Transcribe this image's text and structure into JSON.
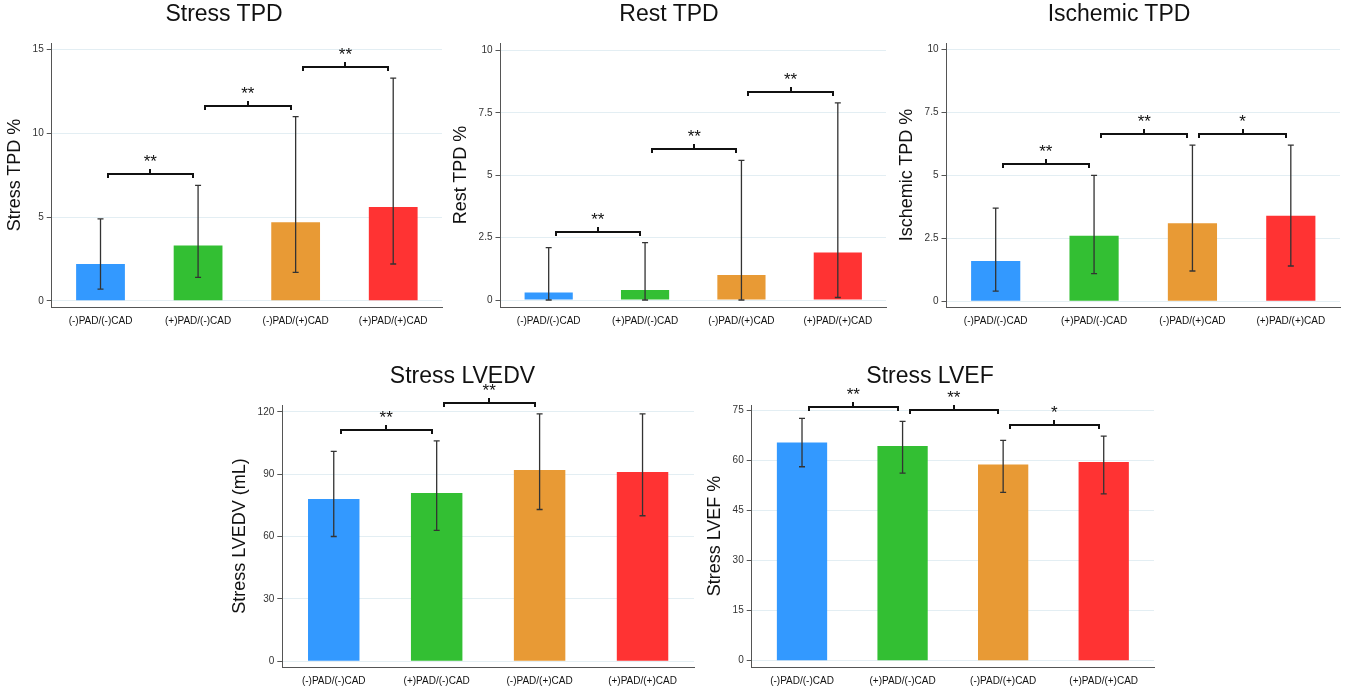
{
  "chart_data": [
    {
      "type": "bar",
      "title": "Stress TPD",
      "ylabel": "Stress TPD %",
      "categories": [
        "(-)PAD/(-)CAD",
        "(+)PAD/(-)CAD",
        "(-)PAD/(+)CAD",
        "(+)PAD/(+)CAD"
      ],
      "values": [
        2.2,
        3.3,
        4.7,
        5.6
      ],
      "colors": [
        "#3399ff",
        "#33bf33",
        "#e89a35",
        "#ff3333"
      ],
      "errors": [
        [
          0.7,
          4.9
        ],
        [
          1.4,
          6.9
        ],
        [
          1.7,
          11
        ],
        [
          2.2,
          13.3
        ]
      ],
      "ylim": [
        -0.37,
        15.4
      ],
      "yticks": [
        0,
        5,
        10,
        15
      ],
      "grid": "y",
      "annotations": [
        "**",
        "**",
        "**"
      ]
    },
    {
      "type": "bar",
      "title": "Rest TPD",
      "ylabel": "Rest TPD %",
      "categories": [
        "(-)PAD/(-)CAD",
        "(+)PAD/(-)CAD",
        "(-)PAD/(+)CAD",
        "(+)PAD/(+)CAD"
      ],
      "values": [
        0.3,
        0.4,
        1.0,
        1.9
      ],
      "colors": [
        "#3399ff",
        "#33bf33",
        "#e89a35",
        "#ff3333"
      ],
      "errors": [
        [
          0,
          2.1
        ],
        [
          0,
          2.3
        ],
        [
          0,
          5.6
        ],
        [
          0.1,
          7.9
        ]
      ],
      "ylim": [
        -0.28,
        10.3
      ],
      "yticks": [
        0,
        2.5,
        5,
        7.5,
        10
      ],
      "grid": "y",
      "annotations": [
        "**",
        "**",
        "**"
      ]
    },
    {
      "type": "bar",
      "title": "Ischemic TPD",
      "ylabel": "Ischemic TPD %",
      "categories": [
        "(-)PAD/(-)CAD",
        "(+)PAD/(-)CAD",
        "(-)PAD/(+)CAD",
        "(+)PAD/(+)CAD"
      ],
      "values": [
        1.6,
        2.6,
        3.1,
        3.4
      ],
      "colors": [
        "#3399ff",
        "#33bf33",
        "#e89a35",
        "#ff3333"
      ],
      "errors": [
        [
          0.4,
          3.7
        ],
        [
          1.1,
          5.0
        ],
        [
          1.2,
          6.2
        ],
        [
          1.4,
          6.2
        ]
      ],
      "ylim": [
        -0.23,
        10.26
      ],
      "yticks": [
        0,
        2.5,
        5,
        7.5,
        10
      ],
      "grid": "y",
      "annotations": [
        "**",
        "**",
        "*"
      ]
    },
    {
      "type": "bar",
      "title": "Stress LVEDV",
      "ylabel": "Stress LVEDV (mL)",
      "categories": [
        "(-)PAD/(-)CAD",
        "(+)PAD/(-)CAD",
        "(-)PAD/(+)CAD",
        "(+)PAD/(+)CAD"
      ],
      "values": [
        78,
        81,
        92,
        91
      ],
      "colors": [
        "#3399ff",
        "#33bf33",
        "#e89a35",
        "#ff3333"
      ],
      "errors": [
        [
          60,
          101
        ],
        [
          63,
          106
        ],
        [
          73,
          119
        ],
        [
          70,
          119
        ]
      ],
      "ylim": [
        -2.8,
        123.3
      ],
      "yticks": [
        0,
        30,
        60,
        90,
        120
      ],
      "grid": "y",
      "annotations": [
        "**",
        "**"
      ]
    },
    {
      "type": "bar",
      "title": "Stress LVEF",
      "ylabel": "Stress LVEF %",
      "categories": [
        "(-)PAD/(-)CAD",
        "(+)PAD/(-)CAD",
        "(-)PAD/(+)CAD",
        "(+)PAD/(+)CAD"
      ],
      "values": [
        65.4,
        64.3,
        58.8,
        59.5
      ],
      "colors": [
        "#3399ff",
        "#33bf33",
        "#e89a35",
        "#ff3333"
      ],
      "errors": [
        [
          58.1,
          72.6
        ],
        [
          56.2,
          71.7
        ],
        [
          50.4,
          66.0
        ],
        [
          50.0,
          67.3
        ]
      ],
      "ylim": [
        -1.9,
        76.6
      ],
      "yticks": [
        0,
        15,
        30,
        45,
        60,
        75
      ],
      "grid": "y",
      "annotations": [
        "**",
        "**",
        "*"
      ]
    }
  ]
}
